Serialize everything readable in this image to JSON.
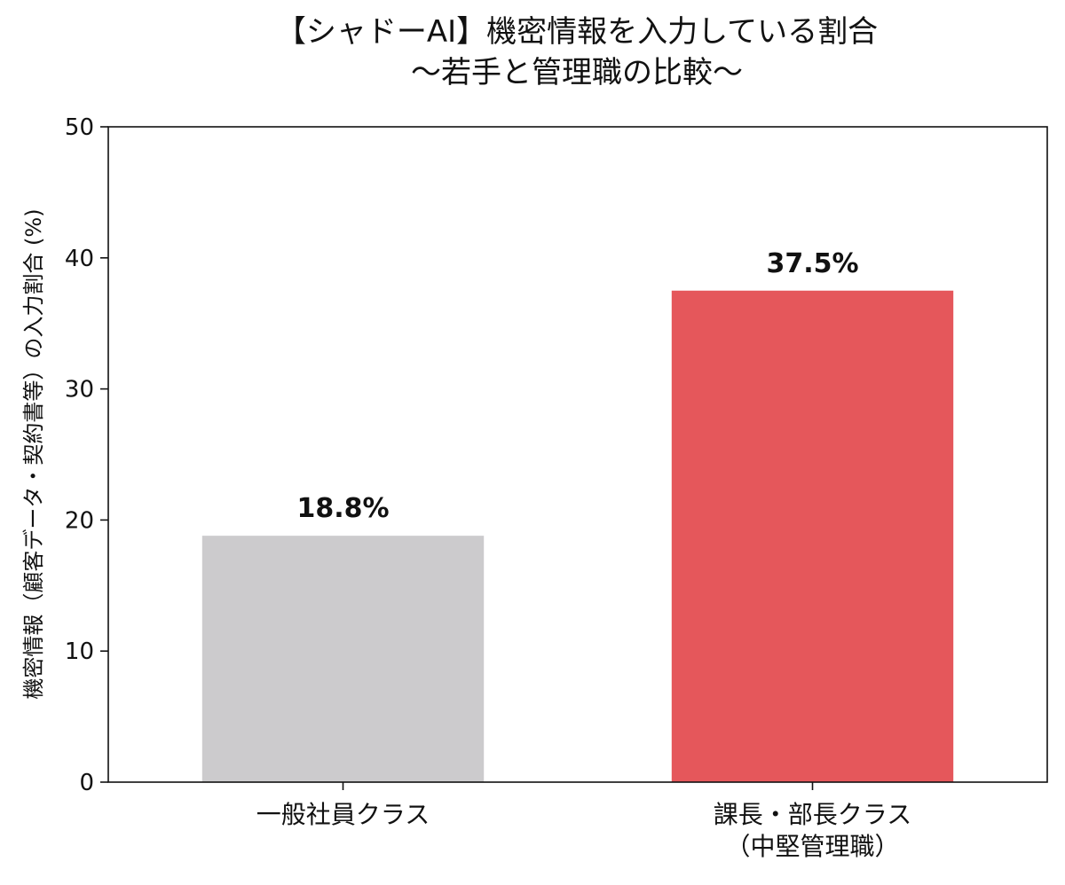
{
  "chart_data": {
    "type": "bar",
    "title": [
      "【シャドーAI】機密情報を入力している割合",
      "〜若手と管理職の比較〜"
    ],
    "ylabel": "機密情報（顧客データ・契約書等）の入力割合 (%)",
    "xlabel": "",
    "categories": [
      [
        "一般社員クラス"
      ],
      [
        "課長・部長クラス",
        "（中堅管理職）"
      ]
    ],
    "values": [
      18.8,
      37.5
    ],
    "data_labels": [
      "18.8%",
      "37.5%"
    ],
    "colors": [
      "#cccbcd",
      "#e5575b"
    ],
    "ylim": [
      0,
      50
    ],
    "yticks": [
      0,
      10,
      20,
      30,
      40,
      50
    ],
    "grid": false,
    "legend": "none"
  }
}
